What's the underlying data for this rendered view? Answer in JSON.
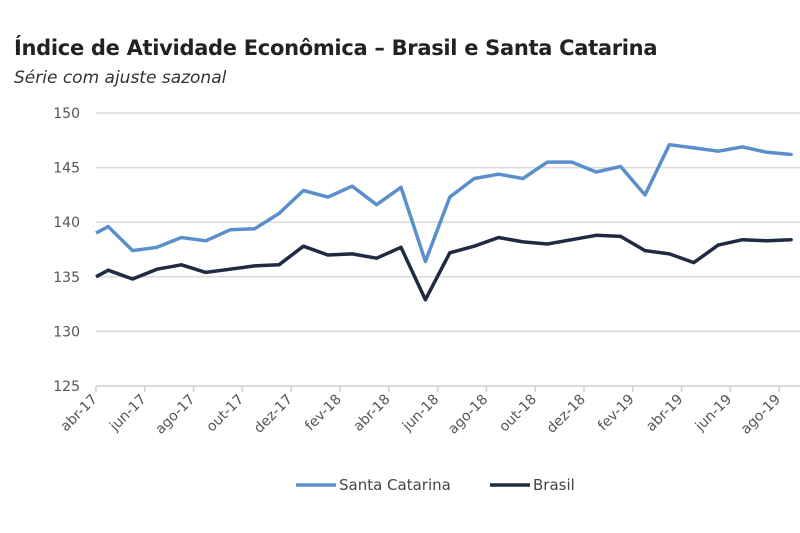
{
  "chart_data": {
    "type": "line",
    "title": "Índice de Atividade Econômica – Brasil e Santa Catarina",
    "subtitle": "Série com ajuste sazonal",
    "xlabel": "",
    "ylabel": "",
    "ylim": [
      125,
      150
    ],
    "yticks": [
      125,
      130,
      135,
      140,
      145,
      150
    ],
    "grid": true,
    "legend": "bottom",
    "categories": [
      "abr-17",
      "mai-17",
      "jun-17",
      "jul-17",
      "ago-17",
      "set-17",
      "out-17",
      "nov-17",
      "dez-17",
      "jan-18",
      "fev-18",
      "mar-18",
      "abr-18",
      "mai-18",
      "jun-18",
      "jul-18",
      "ago-18",
      "set-18",
      "out-18",
      "nov-18",
      "dez-18",
      "jan-19",
      "fev-19",
      "mar-19",
      "abr-19",
      "mai-19",
      "jun-19",
      "jul-19",
      "ago-19"
    ],
    "xtick_labels": [
      "abr-17",
      "jun-17",
      "ago-17",
      "out-17",
      "dez-17",
      "fev-18",
      "abr-18",
      "jun-18",
      "ago-18",
      "out-18",
      "dez-18",
      "fev-19",
      "abr-19",
      "jun-19",
      "ago-19"
    ],
    "series": [
      {
        "name": "Santa Catarina",
        "color": "#5b8fcb",
        "values": [
          139.6,
          137.4,
          137.7,
          138.6,
          138.3,
          139.3,
          139.4,
          140.8,
          142.9,
          142.3,
          143.3,
          141.6,
          143.2,
          136.4,
          142.3,
          144.0,
          144.4,
          144.0,
          145.5,
          145.5,
          144.6,
          145.1,
          142.5,
          147.1,
          146.8,
          146.5,
          146.9,
          146.4,
          146.2
        ]
      },
      {
        "name": "Brasil",
        "color": "#1e2b42",
        "values": [
          135.6,
          134.8,
          135.7,
          136.1,
          135.4,
          135.7,
          136.0,
          136.1,
          137.8,
          137.0,
          137.1,
          136.7,
          137.7,
          132.9,
          137.2,
          137.8,
          138.6,
          138.2,
          138.0,
          138.4,
          138.8,
          138.7,
          137.4,
          137.1,
          136.3,
          137.9,
          138.4,
          138.3,
          138.4
        ]
      }
    ]
  }
}
